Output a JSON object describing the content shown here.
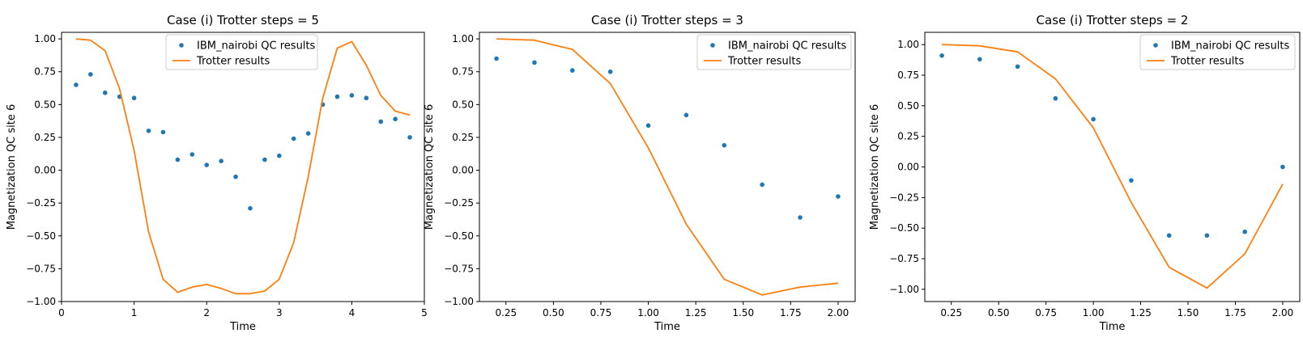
{
  "colors": {
    "qc_points": "#1f77b4",
    "trotter_line": "#ff7f0e",
    "axes": "#000000",
    "legend_border": "#cccccc"
  },
  "chart_data": [
    {
      "type": "line",
      "title": "Case (i) Trotter steps = 5",
      "xlabel": "Time",
      "ylabel": "Magnetization QC site 6",
      "xlim": [
        0,
        5
      ],
      "ylim": [
        -1.0,
        1.05
      ],
      "xticks": [
        0,
        1,
        2,
        3,
        4,
        5
      ],
      "xtick_labels": [
        "0",
        "1",
        "2",
        "3",
        "4",
        "5"
      ],
      "yticks": [
        -1.0,
        -0.75,
        -0.5,
        -0.25,
        0.0,
        0.25,
        0.5,
        0.75,
        1.0
      ],
      "ytick_labels": [
        "−1.00",
        "−0.75",
        "−0.50",
        "−0.25",
        "0.00",
        "0.25",
        "0.50",
        "0.75",
        "1.00"
      ],
      "grid": false,
      "legend_position": "upper center",
      "series": [
        {
          "name": "IBM_nairobi QC results",
          "kind": "scatter",
          "color": "#1f77b4",
          "x": [
            0.2,
            0.4,
            0.6,
            0.8,
            1.0,
            1.2,
            1.4,
            1.6,
            1.8,
            2.0,
            2.2,
            2.4,
            2.6,
            2.8,
            3.0,
            3.2,
            3.4,
            3.6,
            3.8,
            4.0,
            4.2,
            4.4,
            4.6,
            4.8
          ],
          "y": [
            0.65,
            0.73,
            0.59,
            0.56,
            0.55,
            0.3,
            0.29,
            0.08,
            0.12,
            0.04,
            0.07,
            -0.05,
            -0.29,
            0.08,
            0.11,
            0.24,
            0.28,
            0.5,
            0.56,
            0.57,
            0.55,
            0.37,
            0.39,
            0.25
          ]
        },
        {
          "name": "Trotter results",
          "kind": "line",
          "color": "#ff7f0e",
          "x": [
            0.2,
            0.4,
            0.6,
            0.8,
            1.0,
            1.2,
            1.4,
            1.6,
            1.8,
            2.0,
            2.2,
            2.4,
            2.6,
            2.8,
            3.0,
            3.2,
            3.4,
            3.6,
            3.8,
            4.0,
            4.2,
            4.4,
            4.6,
            4.8
          ],
          "y": [
            1.0,
            0.99,
            0.91,
            0.62,
            0.15,
            -0.47,
            -0.83,
            -0.93,
            -0.89,
            -0.87,
            -0.9,
            -0.94,
            -0.94,
            -0.92,
            -0.83,
            -0.55,
            -0.05,
            0.55,
            0.93,
            0.98,
            0.8,
            0.57,
            0.45,
            0.42
          ]
        }
      ]
    },
    {
      "type": "line",
      "title": "Case (i) Trotter steps = 3",
      "xlabel": "Time",
      "ylabel": "Magnetization QC site 6",
      "xlim": [
        0.11,
        2.09
      ],
      "ylim": [
        -1.0,
        1.05
      ],
      "xticks": [
        0.25,
        0.5,
        0.75,
        1.0,
        1.25,
        1.5,
        1.75,
        2.0
      ],
      "xtick_labels": [
        "0.25",
        "0.50",
        "0.75",
        "1.00",
        "1.25",
        "1.50",
        "1.75",
        "2.00"
      ],
      "yticks": [
        -1.0,
        -0.75,
        -0.5,
        -0.25,
        0.0,
        0.25,
        0.5,
        0.75,
        1.0
      ],
      "ytick_labels": [
        "−1.00",
        "−0.75",
        "−0.50",
        "−0.25",
        "0.00",
        "0.25",
        "0.50",
        "0.75",
        "1.00"
      ],
      "grid": false,
      "legend_position": "upper right",
      "series": [
        {
          "name": "IBM_nairobi QC results",
          "kind": "scatter",
          "color": "#1f77b4",
          "x": [
            0.2,
            0.4,
            0.6,
            0.8,
            1.0,
            1.2,
            1.4,
            1.6,
            1.8,
            2.0
          ],
          "y": [
            0.85,
            0.82,
            0.76,
            0.75,
            0.34,
            0.42,
            0.19,
            -0.11,
            -0.36,
            -0.2
          ]
        },
        {
          "name": "Trotter results",
          "kind": "line",
          "color": "#ff7f0e",
          "x": [
            0.2,
            0.4,
            0.6,
            0.8,
            1.0,
            1.2,
            1.4,
            1.6,
            1.8,
            2.0
          ],
          "y": [
            1.0,
            0.99,
            0.92,
            0.66,
            0.17,
            -0.41,
            -0.83,
            -0.95,
            -0.89,
            -0.86
          ]
        }
      ]
    },
    {
      "type": "line",
      "title": "Case (i) Trotter steps = 2",
      "xlabel": "Time",
      "ylabel": "Magnetization QC site 6",
      "xlim": [
        0.11,
        2.09
      ],
      "ylim": [
        -1.1,
        1.1
      ],
      "xticks": [
        0.25,
        0.5,
        0.75,
        1.0,
        1.25,
        1.5,
        1.75,
        2.0
      ],
      "xtick_labels": [
        "0.25",
        "0.50",
        "0.75",
        "1.00",
        "1.25",
        "1.50",
        "1.75",
        "2.00"
      ],
      "yticks": [
        -1.0,
        -0.75,
        -0.5,
        -0.25,
        0.0,
        0.25,
        0.5,
        0.75,
        1.0
      ],
      "ytick_labels": [
        "−1.00",
        "−0.75",
        "−0.50",
        "−0.25",
        "0.00",
        "0.25",
        "0.50",
        "0.75",
        "1.00"
      ],
      "grid": false,
      "legend_position": "upper right",
      "series": [
        {
          "name": "IBM_nairobi QC results",
          "kind": "scatter",
          "color": "#1f77b4",
          "x": [
            0.2,
            0.4,
            0.6,
            0.8,
            1.0,
            1.2,
            1.4,
            1.6,
            1.8,
            2.0
          ],
          "y": [
            0.91,
            0.88,
            0.82,
            0.56,
            0.39,
            -0.11,
            -0.56,
            -0.56,
            -0.53,
            0.0
          ]
        },
        {
          "name": "Trotter results",
          "kind": "line",
          "color": "#ff7f0e",
          "x": [
            0.2,
            0.4,
            0.6,
            0.8,
            1.0,
            1.2,
            1.4,
            1.6,
            1.8,
            2.0
          ],
          "y": [
            1.0,
            0.99,
            0.94,
            0.72,
            0.32,
            -0.29,
            -0.82,
            -0.99,
            -0.71,
            -0.14
          ]
        }
      ]
    }
  ]
}
